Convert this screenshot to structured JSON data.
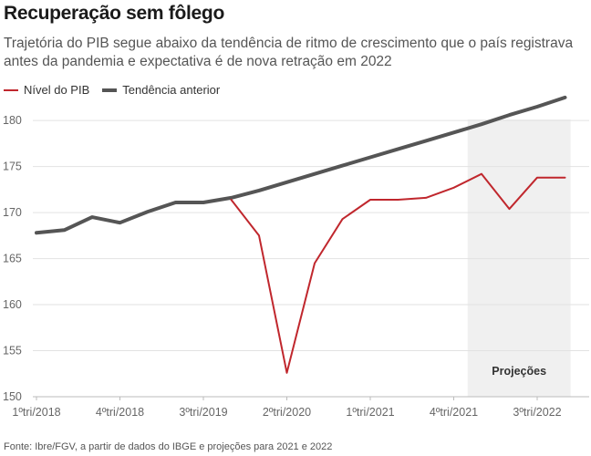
{
  "chart_data": {
    "type": "line",
    "title": "Recuperação sem fôlego",
    "subtitle": "Trajetória do PIB segue abaixo da tendência de ritmo de crescimento que o país registrava antes da pandemia e expectativa é de nova retração em 2022",
    "source": "Fonte: Ibre/FGV, a partir de dados do IBGE e projeções para 2021 e 2022",
    "xlabel": "",
    "ylabel": "",
    "ylim": [
      150,
      182
    ],
    "yticks": [
      150,
      155,
      160,
      165,
      170,
      175,
      180
    ],
    "grid": true,
    "legend_position": "top-left",
    "x": [
      "1ºtri/2018",
      "2ºtri/2018",
      "3ºtri/2018",
      "4ºtri/2018",
      "1ºtri/2019",
      "2ºtri/2019",
      "3ºtri/2019",
      "4ºtri/2019",
      "1ºtri/2020",
      "2ºtri/2020",
      "3ºtri/2020",
      "4ºtri/2020",
      "1ºtri/2021",
      "2ºtri/2021",
      "3ºtri/2021",
      "4ºtri/2021",
      "1ºtri/2022",
      "2ºtri/2022",
      "3ºtri/2022",
      "4ºtri/2022"
    ],
    "x_tick_labels": [
      {
        "index": 0,
        "label": "1ºtri/2018"
      },
      {
        "index": 3,
        "label": "4ºtri/2018"
      },
      {
        "index": 6,
        "label": "3ºtri/2019"
      },
      {
        "index": 9,
        "label": "2ºtri/2020"
      },
      {
        "index": 12,
        "label": "1ºtri/2021"
      },
      {
        "index": 15,
        "label": "4ºtri/2021"
      },
      {
        "index": 18,
        "label": "3ºtri/2022"
      }
    ],
    "projection": {
      "label": "Projeções",
      "from_index": 15.5,
      "to_index": 19.2,
      "color": "#f0f0f0"
    },
    "series": [
      {
        "name": "Nível do PIB",
        "color": "#c0272d",
        "values": [
          null,
          null,
          null,
          null,
          null,
          null,
          null,
          171.4,
          167.5,
          152.6,
          164.5,
          169.3,
          171.4,
          171.4,
          171.6,
          172.7,
          174.2,
          170.4,
          173.8,
          173.8
        ]
      },
      {
        "name": "Tendência anterior",
        "color": "#555555",
        "values": [
          167.8,
          168.1,
          169.5,
          168.9,
          170.1,
          171.1,
          171.1,
          171.6,
          172.4,
          173.3,
          174.2,
          175.1,
          176.0,
          176.9,
          177.8,
          178.7,
          179.6,
          180.6,
          181.5,
          182.5
        ]
      }
    ]
  }
}
